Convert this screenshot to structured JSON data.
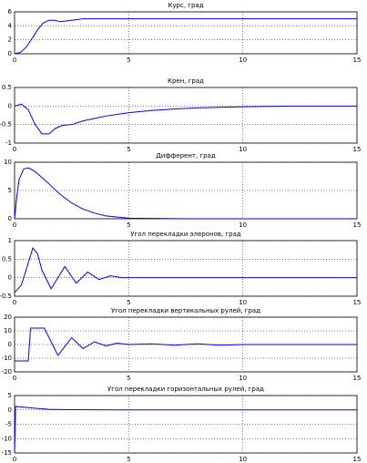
{
  "chart_data": [
    {
      "type": "line",
      "title": "Курс, град",
      "x": [
        0,
        0.25,
        0.5,
        0.75,
        1,
        1.25,
        1.5,
        1.75,
        2,
        2.5,
        3,
        4,
        5,
        7.5,
        10,
        12.5,
        15
      ],
      "series": [
        {
          "color": "#0000ff",
          "values": [
            0,
            0.2,
            0.9,
            2.1,
            3.4,
            4.4,
            4.8,
            4.8,
            4.6,
            4.8,
            5,
            5,
            5,
            5,
            5,
            5,
            5
          ]
        }
      ],
      "xlim": [
        0,
        15
      ],
      "xticks": [
        0,
        5,
        10,
        15
      ],
      "ylim": [
        0,
        6
      ],
      "yticks": [
        0,
        2,
        4,
        6
      ],
      "grid": true
    },
    {
      "type": "line",
      "title": "Крен, град",
      "x": [
        0,
        0.3,
        0.6,
        0.9,
        1.2,
        1.5,
        1.8,
        2.1,
        2.5,
        3,
        4,
        5,
        6,
        7,
        8,
        10,
        12,
        15
      ],
      "series": [
        {
          "color": "#0000ff",
          "values": [
            0,
            0.05,
            -0.1,
            -0.5,
            -0.75,
            -0.75,
            -0.6,
            -0.52,
            -0.5,
            -0.4,
            -0.27,
            -0.18,
            -0.12,
            -0.08,
            -0.05,
            -0.02,
            0,
            0
          ]
        }
      ],
      "xlim": [
        0,
        15
      ],
      "xticks": [
        0,
        5,
        10,
        15
      ],
      "ylim": [
        -1,
        0.5
      ],
      "yticks": [
        -1,
        -0.5,
        0,
        0.5
      ],
      "grid": true
    },
    {
      "type": "line",
      "title": "Дифферент, град",
      "x": [
        0,
        0.1,
        0.2,
        0.4,
        0.6,
        0.8,
        1,
        1.5,
        2,
        2.5,
        3,
        3.5,
        4,
        5,
        7.5,
        10,
        12.5,
        15
      ],
      "series": [
        {
          "color": "#0000ff",
          "values": [
            0,
            4,
            7,
            8.8,
            9,
            8.6,
            8,
            6.2,
            4.3,
            2.8,
            1.7,
            1,
            0.5,
            0.1,
            0,
            0,
            0,
            0
          ]
        }
      ],
      "xlim": [
        0,
        15
      ],
      "xticks": [
        0,
        5,
        10,
        15
      ],
      "ylim": [
        0,
        10
      ],
      "yticks": [
        0,
        5,
        10
      ],
      "grid": true
    },
    {
      "type": "line",
      "title": "Угол перекладки элеронов, град",
      "x": [
        0,
        0.3,
        0.5,
        0.8,
        1,
        1.2,
        1.6,
        1.9,
        2.2,
        2.7,
        3.2,
        3.7,
        4.2,
        4.7,
        5,
        7.5,
        10,
        12.5,
        15
      ],
      "series": [
        {
          "color": "#0000ff",
          "values": [
            -0.4,
            -0.2,
            0.2,
            0.8,
            0.65,
            0.2,
            -0.3,
            0,
            0.3,
            -0.15,
            0.15,
            -0.05,
            0.05,
            0,
            0,
            0,
            0,
            0,
            0
          ]
        }
      ],
      "xlim": [
        0,
        15
      ],
      "xticks": [
        0,
        5,
        10,
        15
      ],
      "ylim": [
        -0.5,
        1
      ],
      "yticks": [
        -0.5,
        0,
        0.5,
        1
      ],
      "grid": true
    },
    {
      "type": "line",
      "title": "Угол перекладки вертикальных рулей, град",
      "x": [
        0,
        0.6,
        0.7,
        1.3,
        1.9,
        2.5,
        3,
        3.5,
        4,
        4.5,
        5,
        6,
        7,
        8,
        9,
        10,
        12.5,
        15
      ],
      "series": [
        {
          "color": "#0000ff",
          "values": [
            -12,
            -12,
            12,
            12,
            -8,
            5,
            -3,
            2,
            -1,
            1,
            0,
            0.5,
            -0.5,
            0.5,
            -0.5,
            0,
            0,
            0
          ]
        }
      ],
      "xlim": [
        0,
        15
      ],
      "xticks": [
        0,
        5,
        10,
        15
      ],
      "ylim": [
        -20,
        20
      ],
      "yticks": [
        -20,
        -10,
        0,
        10,
        20
      ],
      "grid": true
    },
    {
      "type": "line",
      "title": "Угол перекладки горизонтальных рулей, град",
      "x": [
        0,
        0.05,
        0.2,
        0.6,
        1,
        1.5,
        2,
        5,
        10,
        15
      ],
      "series": [
        {
          "color": "#0000ff",
          "values": [
            -15,
            1.2,
            1.1,
            0.8,
            0.5,
            0.2,
            0.1,
            0,
            0,
            0
          ]
        }
      ],
      "xlim": [
        0,
        15
      ],
      "xticks": [
        0,
        5,
        10,
        15
      ],
      "ylim": [
        -15,
        5
      ],
      "yticks": [
        -15,
        -10,
        -5,
        0,
        5
      ],
      "grid": true
    }
  ]
}
